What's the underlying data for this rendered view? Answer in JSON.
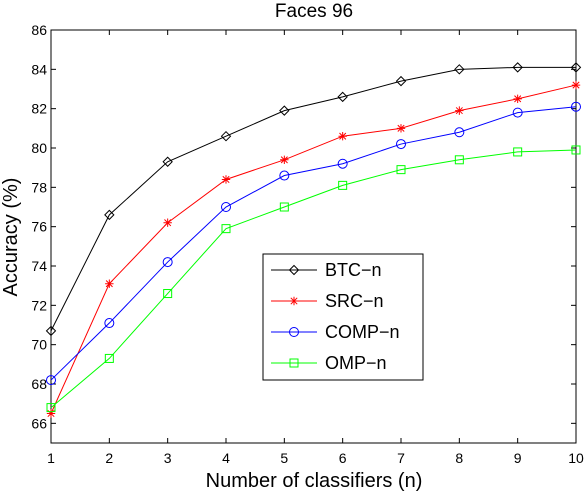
{
  "chart_data": {
    "type": "line",
    "title": "Faces 96",
    "xlabel": "Number of classifiers (n)",
    "ylabel": "Accuracy (%)",
    "xlim": [
      1,
      10
    ],
    "ylim": [
      65,
      86
    ],
    "xticks": [
      1,
      2,
      3,
      4,
      5,
      6,
      7,
      8,
      9,
      10
    ],
    "yticks": [
      66,
      68,
      70,
      72,
      74,
      76,
      78,
      80,
      82,
      84,
      86
    ],
    "grid": false,
    "legend_position": "center",
    "x": [
      1,
      2,
      3,
      4,
      5,
      6,
      7,
      8,
      9,
      10
    ],
    "series": [
      {
        "name": "BTC−n",
        "color": "#000000",
        "marker": "diamond",
        "values": [
          70.7,
          76.6,
          79.3,
          80.6,
          81.9,
          82.6,
          83.4,
          84.0,
          84.1,
          84.1
        ]
      },
      {
        "name": "SRC−n",
        "color": "#ff0000",
        "marker": "asterisk",
        "values": [
          66.5,
          73.1,
          76.2,
          78.4,
          79.4,
          80.6,
          81.0,
          81.9,
          82.5,
          83.2
        ]
      },
      {
        "name": "COMP−n",
        "color": "#0000ff",
        "marker": "circle",
        "values": [
          68.2,
          71.1,
          74.2,
          77.0,
          78.6,
          79.2,
          80.2,
          80.8,
          81.8,
          82.1
        ]
      },
      {
        "name": "OMP−n",
        "color": "#00ff00",
        "marker": "square",
        "values": [
          66.8,
          69.3,
          72.6,
          75.9,
          77.0,
          78.1,
          78.9,
          79.4,
          79.8,
          79.9
        ]
      }
    ]
  }
}
